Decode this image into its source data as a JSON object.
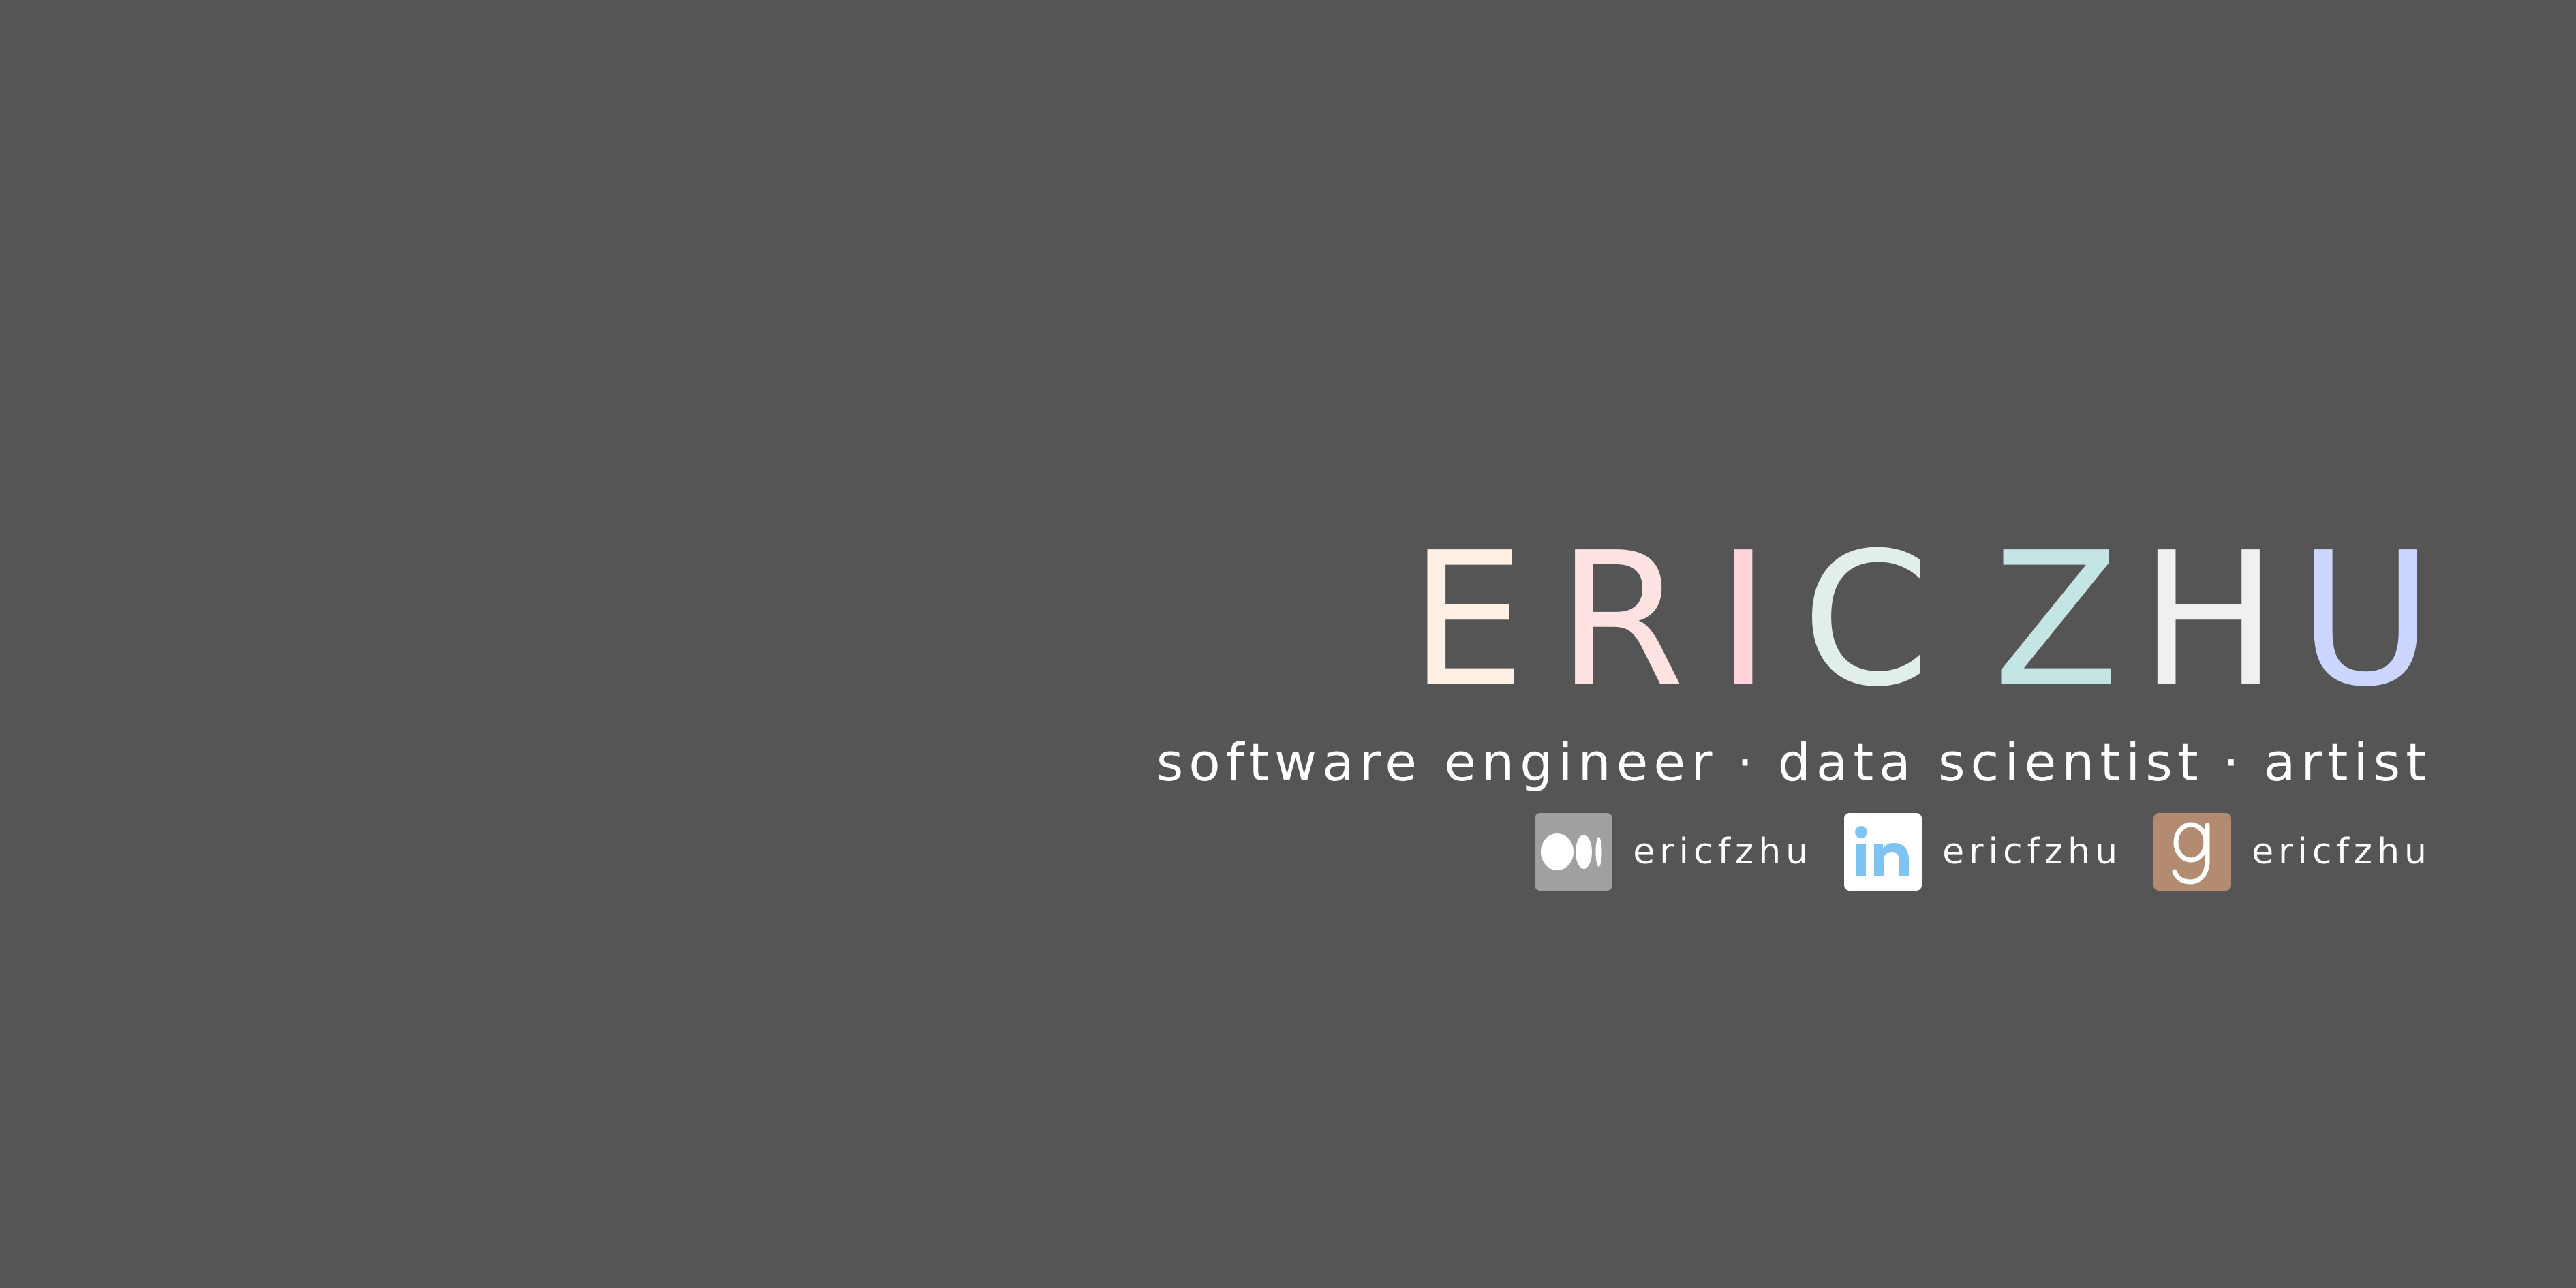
{
  "name": {
    "first": [
      {
        "char": "E",
        "color": "#fff0e6"
      },
      {
        "char": "R",
        "color": "#ffe3e3"
      },
      {
        "char": "I",
        "color": "#ffd3dc"
      }
    ],
    "second_first_part": [
      {
        "char": "C",
        "color": "#e2eee9"
      }
    ],
    "second": [
      {
        "char": "Z",
        "color": "#c4e5e4"
      },
      {
        "char": "H",
        "color": "#f0f1ee"
      },
      {
        "char": "U",
        "color": "#cdd6ff"
      }
    ]
  },
  "tagline": {
    "role1": "software engineer",
    "separator1": "·",
    "role2": "data scientist",
    "separator2": "·",
    "role3": "artist"
  },
  "socials": [
    {
      "icon": "medium-icon",
      "handle": "ericfzhu",
      "bg_color": "#a0a0a0"
    },
    {
      "icon": "linkedin-icon",
      "handle": "ericfzhu",
      "bg_color": "#ffffff",
      "fg_color": "#7fc3f3"
    },
    {
      "icon": "goodreads-icon",
      "handle": "ericfzhu",
      "bg_color": "#b28b70"
    }
  ],
  "colors": {
    "background": "#555555",
    "text": "#ffffff"
  }
}
